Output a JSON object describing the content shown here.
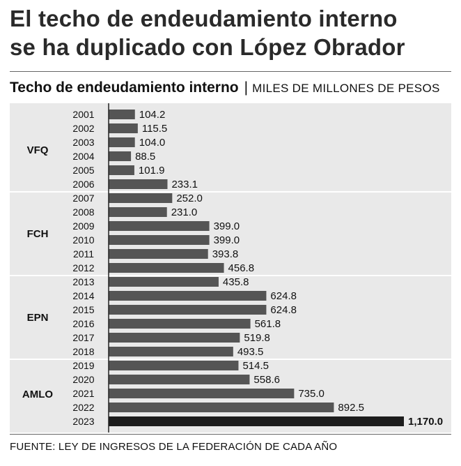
{
  "headline": {
    "line1": "El techo de endeudamiento interno",
    "line2": "se ha duplicado con López Obrador"
  },
  "subtitle": "Techo de endeudamiento interno",
  "separator": "|",
  "units": "MILES DE MILLONES DE PESOS",
  "source": "FUENTE: LEY DE INGRESOS DE LA FEDERACIÓN DE CADA AÑO",
  "colors": {
    "bar": "#555555",
    "bar_highlight": "#1c1c1c",
    "panel": "#e9e9e9",
    "divider": "#ffffff"
  },
  "chart_data": {
    "type": "bar",
    "orientation": "horizontal",
    "title": "Techo de endeudamiento interno",
    "xlabel": "MILES DE MILLONES DE PESOS",
    "ylabel": "",
    "xlim": [
      0,
      1170
    ],
    "grid": false,
    "groups": [
      {
        "label": "VFQ",
        "categories": [
          "2001",
          "2002",
          "2003",
          "2004",
          "2005",
          "2006"
        ]
      },
      {
        "label": "FCH",
        "categories": [
          "2007",
          "2008",
          "2009",
          "2010",
          "2011",
          "2012"
        ]
      },
      {
        "label": "EPN",
        "categories": [
          "2013",
          "2014",
          "2015",
          "2016",
          "2017",
          "2018"
        ]
      },
      {
        "label": "AMLO",
        "categories": [
          "2019",
          "2020",
          "2021",
          "2022",
          "2023"
        ]
      }
    ],
    "categories": [
      "2001",
      "2002",
      "2003",
      "2004",
      "2005",
      "2006",
      "2007",
      "2008",
      "2009",
      "2010",
      "2011",
      "2012",
      "2013",
      "2014",
      "2015",
      "2016",
      "2017",
      "2018",
      "2019",
      "2020",
      "2021",
      "2022",
      "2023"
    ],
    "values": [
      104.2,
      115.5,
      104.0,
      88.5,
      101.9,
      233.1,
      252.0,
      231.0,
      399.0,
      399.0,
      393.8,
      456.8,
      435.8,
      624.8,
      624.8,
      561.8,
      519.8,
      493.5,
      514.5,
      558.6,
      735.0,
      892.5,
      1170.0
    ],
    "value_labels": [
      "104.2",
      "115.5",
      "104.0",
      "88.5",
      "101.9",
      "233.1",
      "252.0",
      "231.0",
      "399.0",
      "399.0",
      "393.8",
      "456.8",
      "435.8",
      "624.8",
      "624.8",
      "561.8",
      "519.8",
      "493.5",
      "514.5",
      "558.6",
      "735.0",
      "892.5",
      "1,170.0"
    ],
    "highlight": "2023"
  }
}
